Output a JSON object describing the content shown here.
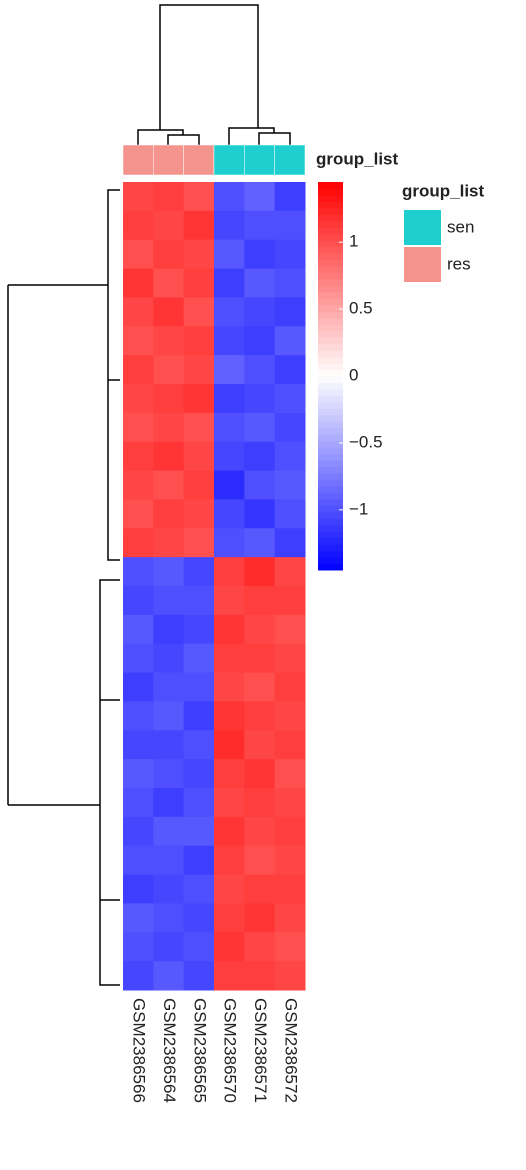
{
  "chart_data": {
    "type": "heatmap",
    "columns": [
      "GSM2386566",
      "GSM2386564",
      "GSM2386565",
      "GSM2386570",
      "GSM2386571",
      "GSM2386572"
    ],
    "rows": [
      null,
      null,
      null,
      null,
      null,
      null,
      null,
      null,
      null,
      null,
      null,
      null,
      null,
      null,
      null,
      null,
      null,
      null,
      null,
      null,
      null,
      null,
      null,
      null,
      null,
      null,
      null,
      null
    ],
    "values": [
      [
        1.05,
        1.1,
        1.0,
        -1.0,
        -0.9,
        -1.1
      ],
      [
        1.1,
        1.05,
        1.15,
        -1.05,
        -1.0,
        -1.0
      ],
      [
        1.0,
        1.1,
        1.05,
        -0.95,
        -1.1,
        -1.05
      ],
      [
        1.15,
        1.0,
        1.1,
        -1.1,
        -0.95,
        -1.0
      ],
      [
        1.05,
        1.15,
        1.0,
        -1.0,
        -1.05,
        -1.1
      ],
      [
        1.0,
        1.05,
        1.1,
        -1.05,
        -1.1,
        -0.95
      ],
      [
        1.1,
        1.0,
        1.05,
        -0.9,
        -1.0,
        -1.1
      ],
      [
        1.05,
        1.1,
        1.15,
        -1.1,
        -1.05,
        -1.0
      ],
      [
        1.0,
        1.05,
        1.0,
        -1.0,
        -0.95,
        -1.05
      ],
      [
        1.1,
        1.15,
        1.05,
        -1.05,
        -1.1,
        -1.0
      ],
      [
        1.05,
        1.0,
        1.1,
        -1.2,
        -1.0,
        -0.95
      ],
      [
        1.0,
        1.1,
        1.05,
        -1.05,
        -1.15,
        -1.0
      ],
      [
        1.1,
        1.05,
        1.0,
        -1.0,
        -0.95,
        -1.1
      ],
      [
        -1.0,
        -0.95,
        -1.05,
        1.1,
        1.2,
        1.05
      ],
      [
        -1.05,
        -1.0,
        -1.0,
        1.05,
        1.1,
        1.1
      ],
      [
        -0.95,
        -1.1,
        -1.05,
        1.15,
        1.05,
        1.0
      ],
      [
        -1.0,
        -1.05,
        -0.95,
        1.1,
        1.1,
        1.05
      ],
      [
        -1.1,
        -1.0,
        -1.0,
        1.05,
        1.0,
        1.1
      ],
      [
        -1.0,
        -0.95,
        -1.1,
        1.15,
        1.1,
        1.05
      ],
      [
        -1.05,
        -1.05,
        -1.0,
        1.2,
        1.05,
        1.1
      ],
      [
        -0.95,
        -1.0,
        -1.05,
        1.1,
        1.15,
        1.0
      ],
      [
        -1.0,
        -1.1,
        -1.0,
        1.05,
        1.1,
        1.05
      ],
      [
        -1.05,
        -0.95,
        -0.95,
        1.15,
        1.05,
        1.1
      ],
      [
        -1.0,
        -1.0,
        -1.1,
        1.1,
        1.0,
        1.05
      ],
      [
        -1.1,
        -1.05,
        -1.0,
        1.05,
        1.1,
        1.1
      ],
      [
        -0.95,
        -1.0,
        -1.05,
        1.1,
        1.15,
        1.05
      ],
      [
        -1.0,
        -1.05,
        -1.0,
        1.15,
        1.05,
        1.0
      ],
      [
        -1.05,
        -0.95,
        -1.05,
        1.1,
        1.1,
        1.05
      ]
    ],
    "zlim": [
      -1.45,
      1.45
    ],
    "zticks": [
      {
        "value": -1,
        "label": "−1"
      },
      {
        "value": -0.5,
        "label": "−0.5"
      },
      0,
      0.5,
      1
    ],
    "annotation": {
      "name": "group_list",
      "groups": [
        "res",
        "res",
        "res",
        "sen",
        "sen",
        "sen"
      ]
    },
    "legend": {
      "title": "group_list",
      "entries": [
        {
          "name": "sen",
          "color": "#1fcfcf"
        },
        {
          "name": "res",
          "color": "#f4948c"
        }
      ]
    }
  }
}
